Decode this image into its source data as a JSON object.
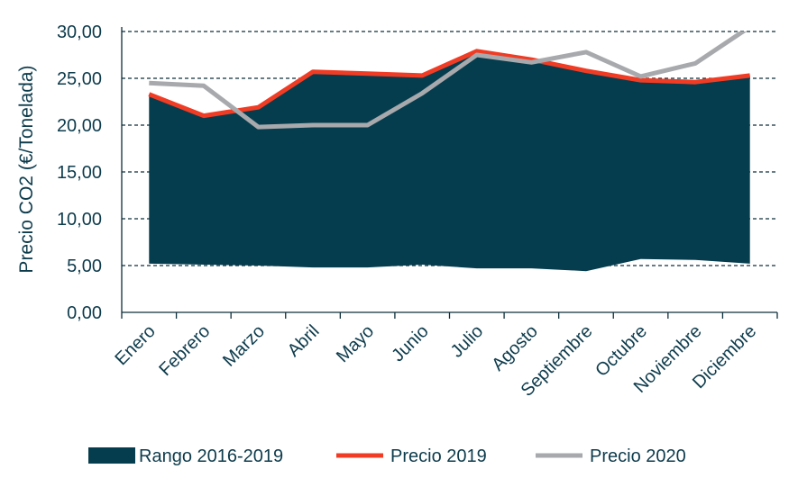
{
  "chart_data": {
    "type": "line",
    "categories": [
      "Enero",
      "Febrero",
      "Marzo",
      "Abril",
      "Mayo",
      "Junio",
      "Julio",
      "Agosto",
      "Septiembre",
      "Octubre",
      "Noviembre",
      "Diciembre"
    ],
    "ylabel": "Precio CO2 (€/Tonelada)",
    "xlabel": "",
    "ylim": [
      0,
      30
    ],
    "yticks": [
      "0,00",
      "5,00",
      "10,00",
      "15,00",
      "20,00",
      "25,00",
      "30,00"
    ],
    "grid": "horizontal dashed",
    "legend_position": "bottom",
    "range_band": {
      "name": "Rango 2016-2019",
      "color": "#063d4e",
      "lower": [
        5.2,
        5.1,
        5.0,
        4.8,
        4.8,
        5.1,
        4.7,
        4.7,
        4.4,
        5.7,
        5.6,
        5.2
      ],
      "upper": [
        23.3,
        21.0,
        21.9,
        25.7,
        25.5,
        25.3,
        27.9,
        27.0,
        25.8,
        24.8,
        24.6,
        25.3
      ]
    },
    "series": [
      {
        "name": "Precio 2019",
        "color": "#f03c24",
        "values": [
          23.3,
          21.0,
          21.9,
          25.7,
          25.5,
          25.3,
          27.9,
          27.0,
          25.8,
          24.8,
          24.6,
          25.3
        ]
      },
      {
        "name": "Precio 2020",
        "color": "#a7a9ac",
        "values": [
          24.5,
          24.2,
          19.8,
          20.0,
          20.0,
          23.4,
          27.5,
          26.7,
          27.8,
          25.2,
          26.6,
          30.5
        ]
      }
    ]
  }
}
